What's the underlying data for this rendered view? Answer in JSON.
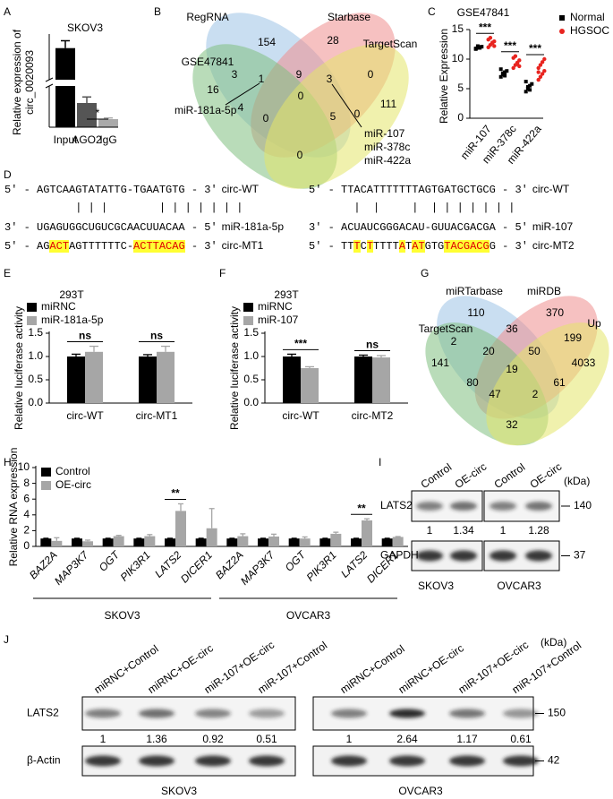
{
  "panel_letters": [
    "A",
    "B",
    "C",
    "D",
    "E",
    "F",
    "G",
    "H",
    "I",
    "J"
  ],
  "chart_data": [
    {
      "type": "broken_bar",
      "title": "SKOV3",
      "ylabel": [
        "Relative expression of",
        "circ_0020093"
      ],
      "categories": [
        "Input",
        "AGO2",
        "IgG"
      ],
      "values": [
        1.0,
        0.06,
        0.02
      ],
      "errors": [
        0.12,
        0.015,
        0.003
      ],
      "colors": [
        "#000000",
        "#555555",
        "#aaaaaa"
      ],
      "ylim": [
        0,
        1.2
      ],
      "ybreak": [
        0.1,
        0.5
      ],
      "annotations": [
        {
          "label": "*",
          "categories": [
            1,
            2
          ]
        }
      ]
    },
    {
      "type": "dot",
      "title": "GSE47841",
      "ylabel": "Relative Expression",
      "categories": [
        "miR-107",
        "miR-378c",
        "miR-422a"
      ],
      "series": [
        {
          "name": "Normal",
          "color": "#000000",
          "values": [
            [
              11.7,
              11.9,
              12.0,
              12.1,
              11.8,
              12.2,
              11.9
            ],
            [
              7.0,
              7.4,
              7.8,
              8.0,
              8.3,
              7.6,
              7.2
            ],
            [
              4.5,
              5.0,
              5.5,
              5.8,
              6.2,
              5.3,
              4.8
            ]
          ]
        },
        {
          "name": "HGSOC",
          "color": "#e8241f",
          "values": [
            [
              12.0,
              12.4,
              12.7,
              13.0,
              13.3,
              13.6,
              12.8,
              12.2
            ],
            [
              8.5,
              9.0,
              9.4,
              9.8,
              10.2,
              10.5,
              9.2,
              8.8
            ],
            [
              6.5,
              7.0,
              7.5,
              8.0,
              8.5,
              9.0,
              9.5,
              10.0,
              7.8
            ]
          ]
        }
      ],
      "ylim": [
        0,
        15
      ],
      "yticks": [
        0,
        5,
        10,
        15
      ],
      "annotations": [
        "***",
        "***",
        "***"
      ]
    },
    {
      "type": "grouped_bar",
      "title": "293T",
      "ylabel": "Relative luciferase activity",
      "categories": [
        "circ-WT",
        "circ-MT1"
      ],
      "series": [
        {
          "name": "miRNC",
          "color": "#000000",
          "values": [
            1.0,
            1.0
          ],
          "errors": [
            0.05,
            0.04
          ]
        },
        {
          "name": "miR-181a-5p",
          "color": "#a6a6a6",
          "values": [
            1.1,
            1.1
          ],
          "errors": [
            0.12,
            0.12
          ]
        }
      ],
      "ylim": [
        0,
        1.5
      ],
      "yticks": [
        {
          "value": 0,
          "label": "0.0"
        },
        {
          "value": 0.5,
          "label": "0.5"
        },
        {
          "value": 1,
          "label": "1.0"
        },
        {
          "value": 1.5,
          "label": "1.5"
        }
      ],
      "annotations": [
        "ns",
        "ns"
      ]
    },
    {
      "type": "grouped_bar",
      "title": "293T",
      "ylabel": "Relative luciferase activity",
      "categories": [
        "circ-WT",
        "circ-MT2"
      ],
      "series": [
        {
          "name": "miRNC",
          "color": "#000000",
          "values": [
            1.0,
            1.0
          ],
          "errors": [
            0.05,
            0.03
          ]
        },
        {
          "name": "miR-107",
          "color": "#a6a6a6",
          "values": [
            0.75,
            0.98
          ],
          "errors": [
            0.03,
            0.04
          ]
        }
      ],
      "ylim": [
        0,
        1.5
      ],
      "yticks": [
        {
          "value": 0,
          "label": "0.0"
        },
        {
          "value": 0.5,
          "label": "0.5"
        },
        {
          "value": 1,
          "label": "1.0"
        },
        {
          "value": 1.5,
          "label": "1.5"
        }
      ],
      "annotations": [
        "***",
        "ns"
      ]
    },
    {
      "type": "grouped_bar",
      "ylabel": "Relative RNA expression",
      "categories": [
        "BAZ2A",
        "MAP3K7",
        "OGT",
        "PIK3R1",
        "LATS2",
        "DICER1",
        "BAZ2A",
        "MAP3K7",
        "OGT",
        "PIK3R1",
        "LATS2",
        "DICER1"
      ],
      "series": [
        {
          "name": "Control",
          "color": "#000000",
          "values": [
            1,
            1,
            1,
            1,
            1,
            1,
            1,
            1,
            1,
            1,
            1,
            1
          ],
          "errors": [
            0.03,
            0.03,
            0.03,
            0.03,
            0.03,
            0.03,
            0.03,
            0.03,
            0.03,
            0.03,
            0.03,
            0.03
          ]
        },
        {
          "name": "OE-circ",
          "color": "#a6a6a6",
          "values": [
            0.7,
            0.65,
            1.3,
            1.3,
            4.5,
            2.3,
            1.3,
            1.25,
            1.0,
            1.6,
            3.3,
            1.2
          ],
          "errors": [
            0.4,
            0.15,
            0.1,
            0.2,
            0.9,
            2.5,
            0.3,
            0.3,
            0.2,
            0.2,
            0.2,
            0.05
          ]
        }
      ],
      "ylim": [
        0,
        10
      ],
      "yticks": [
        0,
        2,
        4,
        6,
        8,
        10
      ],
      "annotations": [
        {
          "label": "**",
          "category": 4
        },
        {
          "label": "**",
          "category": 10
        }
      ],
      "category_groups": [
        {
          "label": "SKOV3",
          "from": 0,
          "to": 5
        },
        {
          "label": "OVCAR3",
          "from": 6,
          "to": 11
        }
      ]
    }
  ],
  "venn_diagrams": [
    {
      "sets": [
        {
          "name": "RegRNA",
          "color": "#9dc3e6"
        },
        {
          "name": "Starbase",
          "color": "#ee8e8e"
        },
        {
          "name": "TargetScan",
          "color": "#7fbf7f"
        },
        {
          "name": "GSE47841",
          "color": "#e3e56a"
        }
      ],
      "numbers": [
        154,
        28,
        9,
        3,
        0,
        16,
        1,
        3,
        111,
        4,
        0,
        0,
        5,
        0,
        0
      ],
      "highlighted": [
        6,
        7
      ],
      "highlight_color": "#e8241f",
      "annotations": [
        [
          "miR-181a-5p"
        ],
        [
          "miR-107",
          "miR-378c",
          "miR-422a"
        ]
      ]
    },
    {
      "sets": [
        {
          "name": "miRTarbase",
          "color": "#9dc3e6"
        },
        {
          "name": "miRDB",
          "color": "#ee8e8e"
        },
        {
          "name": "TargetScan",
          "color": "#7fbf7f"
        },
        {
          "name": "Up",
          "color": "#e3e56a"
        }
      ],
      "numbers": [
        110,
        370,
        36,
        2,
        20,
        50,
        199,
        141,
        19,
        4033,
        80,
        47,
        61,
        2,
        32
      ],
      "highlighted": [
        8
      ],
      "highlight_color": "#e8241f"
    }
  ],
  "sequence_alignments": [
    {
      "rows": [
        {
          "parts": [
            {
              "text": "5' - AGTCAAGTATATTG-TGAATGTG - 3'",
              "highlight": false
            }
          ],
          "label": "circ-WT"
        },
        {
          "parts": [
            {
              "text": "           | | |        | | | | | | |",
              "highlight": false
            }
          ]
        },
        {
          "parts": [
            {
              "text": "3' - UGAGUGGCUGUCGCAACUUACAA - 5'",
              "highlight": false
            }
          ],
          "label": "miR-181a-5p"
        },
        {
          "parts": [
            {
              "text": "5' - AG",
              "highlight": false
            },
            {
              "text": "ACT",
              "highlight": true
            },
            {
              "text": "AGTTTTTTC-",
              "highlight": false
            },
            {
              "text": "ACTTACAG",
              "highlight": true
            },
            {
              "text": " - 3'",
              "highlight": false
            }
          ],
          "label": "circ-MT1"
        }
      ]
    },
    {
      "rows": [
        {
          "parts": [
            {
              "text": "5' - TTACATTTTTTTAGTGATGCTGCG - 3'",
              "highlight": false
            }
          ],
          "label": "circ-WT"
        },
        {
          "parts": [
            {
              "text": "       |  |     |  | | | | | | |",
              "highlight": false
            }
          ]
        },
        {
          "parts": [
            {
              "text": "3' - ACUAUCGGGACAU-GUUACGACGA - 5'",
              "highlight": false
            }
          ],
          "label": "miR-107"
        },
        {
          "parts": [
            {
              "text": "5' - TT",
              "highlight": false
            },
            {
              "text": "T",
              "highlight": true
            },
            {
              "text": "C",
              "highlight": false
            },
            {
              "text": "T",
              "highlight": true
            },
            {
              "text": "TTTT",
              "highlight": false
            },
            {
              "text": "A",
              "highlight": true
            },
            {
              "text": "T",
              "highlight": false
            },
            {
              "text": "AT",
              "highlight": true
            },
            {
              "text": "GTG",
              "highlight": false
            },
            {
              "text": "TACGACG",
              "highlight": true
            },
            {
              "text": "G - 3'",
              "highlight": false
            }
          ],
          "label": "circ-MT2"
        }
      ]
    }
  ],
  "western_blots": [
    {
      "lanes": [
        [
          "Control",
          "OE-circ"
        ],
        [
          "Control",
          "OE-circ"
        ]
      ],
      "unit": "(kDa)",
      "rows": [
        {
          "name": "LATS2",
          "marker": 140
        },
        {
          "name": "GAPDH",
          "marker": 37
        }
      ],
      "quantification": [
        [
          1,
          1.34
        ],
        [
          1,
          1.28
        ]
      ],
      "cell_lines": [
        "SKOV3",
        "OVCAR3"
      ]
    },
    {
      "lanes": [
        [
          "miRNC+Control",
          "miRNC+OE-circ",
          "miR-107+OE-circ",
          "miR-107+Control"
        ],
        [
          "miRNC+Control",
          "miRNC+OE-circ",
          "miR-107+OE-circ",
          "miR-107+Control"
        ]
      ],
      "unit": "(kDa)",
      "rows": [
        {
          "name": "LATS2",
          "marker": 150
        },
        {
          "name": "β-Actin",
          "marker": 42
        }
      ],
      "quantification": [
        [
          1,
          1.36,
          0.92,
          0.51
        ],
        [
          1,
          2.64,
          1.17,
          0.61
        ]
      ],
      "cell_lines": [
        "SKOV3",
        "OVCAR3"
      ]
    }
  ]
}
